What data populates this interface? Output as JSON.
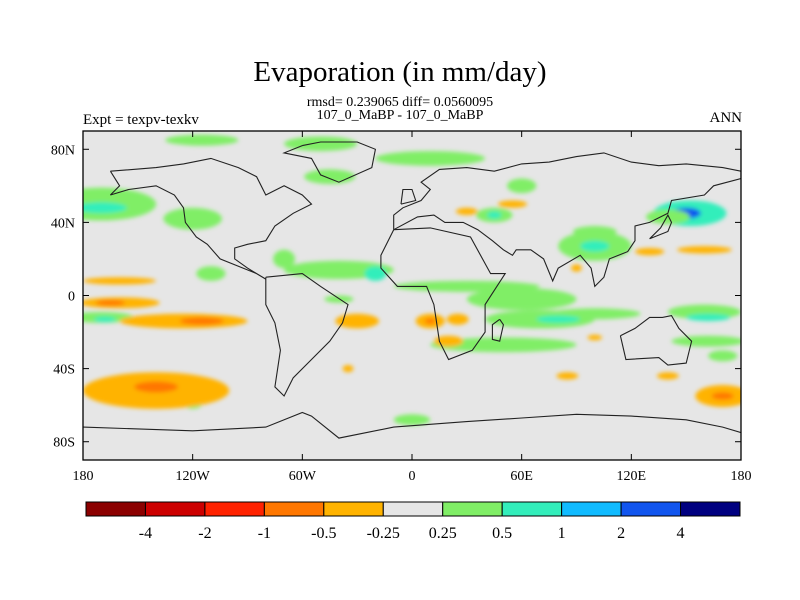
{
  "figure": {
    "title": "Evaporation (in mm/day)",
    "stats": "rmsd= 0.239065 diff= 0.0560095",
    "subtitle": "107_0_MaBP - 107_0_MaBP",
    "left_label": "Expt = texpv-texkv",
    "right_label": "ANN"
  },
  "chart_data": {
    "type": "heatmap",
    "title": "Evaporation (in mm/day)",
    "subtitle": "107_0_MaBP - 107_0_MaBP",
    "xlim": [
      -180,
      180
    ],
    "ylim": [
      -90,
      90
    ],
    "x_ticks": [
      {
        "value": -180,
        "label": "180"
      },
      {
        "value": -120,
        "label": "120W"
      },
      {
        "value": -60,
        "label": "60W"
      },
      {
        "value": 0,
        "label": "0"
      },
      {
        "value": 60,
        "label": "60E"
      },
      {
        "value": 120,
        "label": "120E"
      },
      {
        "value": 180,
        "label": "180"
      }
    ],
    "y_ticks": [
      {
        "value": 80,
        "label": "80N"
      },
      {
        "value": 40,
        "label": "40N"
      },
      {
        "value": 0,
        "label": "0"
      },
      {
        "value": -40,
        "label": "40S"
      },
      {
        "value": -80,
        "label": "80S"
      }
    ],
    "background_color": "#e6e6e6",
    "colorbar": {
      "colors": [
        "#8b0000",
        "#cc0000",
        "#ff2200",
        "#ff7700",
        "#ffb300",
        "#e6e6e6",
        "#80ee66",
        "#33eebb",
        "#11bbff",
        "#1155ee",
        "#000080"
      ],
      "labels": [
        "-4",
        "-2",
        "-1",
        "-0.5",
        "-0.25",
        "0.25",
        "0.5",
        "1",
        "2",
        "4"
      ]
    },
    "anomalies": [
      {
        "lon": -170,
        "lat": 50,
        "dlon": 30,
        "dlat": 9,
        "color": "#80ee66"
      },
      {
        "lon": -170,
        "lat": 48,
        "dlon": 14,
        "dlat": 3,
        "color": "#33eebb"
      },
      {
        "lon": -120,
        "lat": 42,
        "dlon": 16,
        "dlat": 6,
        "color": "#80ee66"
      },
      {
        "lon": -115,
        "lat": 85,
        "dlon": 20,
        "dlat": 3,
        "color": "#80ee66"
      },
      {
        "lon": -50,
        "lat": 83,
        "dlon": 20,
        "dlat": 4,
        "color": "#80ee66"
      },
      {
        "lon": -45,
        "lat": 65,
        "dlon": 14,
        "dlat": 4,
        "color": "#80ee66"
      },
      {
        "lon": -70,
        "lat": 20,
        "dlon": 6,
        "dlat": 5,
        "color": "#80ee66"
      },
      {
        "lon": -40,
        "lat": 14,
        "dlon": 30,
        "dlat": 5,
        "color": "#80ee66"
      },
      {
        "lon": -20,
        "lat": 12,
        "dlon": 6,
        "dlat": 4,
        "color": "#33eebb"
      },
      {
        "lon": 30,
        "lat": 5,
        "dlon": 40,
        "dlat": 3,
        "color": "#80ee66"
      },
      {
        "lon": -40,
        "lat": -2,
        "dlon": 8,
        "dlat": 2,
        "color": "#80ee66"
      },
      {
        "lon": 60,
        "lat": -2,
        "dlon": 30,
        "dlat": 6,
        "color": "#80ee66"
      },
      {
        "lon": 100,
        "lat": -10,
        "dlon": 25,
        "dlat": 3,
        "color": "#80ee66"
      },
      {
        "lon": 70,
        "lat": -13,
        "dlon": 30,
        "dlat": 5,
        "color": "#80ee66"
      },
      {
        "lon": 80,
        "lat": -13,
        "dlon": 12,
        "dlat": 2,
        "color": "#33eebb"
      },
      {
        "lon": 160,
        "lat": -9,
        "dlon": 20,
        "dlat": 4,
        "color": "#80ee66"
      },
      {
        "lon": 162,
        "lat": -12,
        "dlon": 12,
        "dlat": 2,
        "color": "#33eebb"
      },
      {
        "lon": 162,
        "lat": -25,
        "dlon": 20,
        "dlat": 3,
        "color": "#80ee66"
      },
      {
        "lon": 50,
        "lat": -27,
        "dlon": 40,
        "dlat": 4,
        "color": "#80ee66"
      },
      {
        "lon": -170,
        "lat": -12,
        "dlon": 18,
        "dlat": 3,
        "color": "#80ee66"
      },
      {
        "lon": -168,
        "lat": -13,
        "dlon": 6,
        "dlat": 1.5,
        "color": "#33eebb"
      },
      {
        "lon": 100,
        "lat": 27,
        "dlon": 20,
        "dlat": 8,
        "color": "#80ee66"
      },
      {
        "lon": 100,
        "lat": 27,
        "dlon": 8,
        "dlat": 3,
        "color": "#33eebb"
      },
      {
        "lon": 152,
        "lat": 45,
        "dlon": 20,
        "dlat": 7,
        "color": "#33eebb"
      },
      {
        "lon": 150,
        "lat": 45,
        "dlon": 8,
        "dlat": 3,
        "color": "#1155ee"
      },
      {
        "lon": 140,
        "lat": 43,
        "dlon": 12,
        "dlat": 4,
        "color": "#80ee66"
      },
      {
        "lon": 45,
        "lat": 44,
        "dlon": 10,
        "dlat": 4,
        "color": "#80ee66"
      },
      {
        "lon": 45,
        "lat": 44,
        "dlon": 4,
        "dlat": 2,
        "color": "#33eebb"
      },
      {
        "lon": 10,
        "lat": 75,
        "dlon": 30,
        "dlat": 4,
        "color": "#80ee66"
      },
      {
        "lon": 60,
        "lat": 60,
        "dlon": 8,
        "dlat": 4,
        "color": "#80ee66"
      },
      {
        "lon": -110,
        "lat": 12,
        "dlon": 8,
        "dlat": 4,
        "color": "#80ee66"
      },
      {
        "lon": 0,
        "lat": -68,
        "dlon": 10,
        "dlat": 3,
        "color": "#80ee66"
      },
      {
        "lon": -120,
        "lat": -58,
        "dlon": 6,
        "dlat": 4,
        "color": "#80ee66"
      },
      {
        "lon": 170,
        "lat": -33,
        "dlon": 8,
        "dlat": 3,
        "color": "#80ee66"
      },
      {
        "lon": 100,
        "lat": 35,
        "dlon": 12,
        "dlat": 3,
        "color": "#80ee66"
      },
      {
        "lon": -160,
        "lat": 8,
        "dlon": 20,
        "dlat": 2,
        "color": "#ffb300"
      },
      {
        "lon": -160,
        "lat": -4,
        "dlon": 22,
        "dlat": 3,
        "color": "#ffb300"
      },
      {
        "lon": -165,
        "lat": -4,
        "dlon": 8,
        "dlat": 1.5,
        "color": "#ff7700"
      },
      {
        "lon": -125,
        "lat": -14,
        "dlon": 35,
        "dlat": 4,
        "color": "#ffb300"
      },
      {
        "lon": -115,
        "lat": -14,
        "dlon": 12,
        "dlat": 2,
        "color": "#ff7700"
      },
      {
        "lon": -140,
        "lat": -52,
        "dlon": 40,
        "dlat": 10,
        "color": "#ffb300"
      },
      {
        "lon": -140,
        "lat": -50,
        "dlon": 12,
        "dlat": 3,
        "color": "#ff7700"
      },
      {
        "lon": 170,
        "lat": -55,
        "dlon": 15,
        "dlat": 6,
        "color": "#ffb300"
      },
      {
        "lon": 170,
        "lat": -55,
        "dlon": 6,
        "dlat": 2,
        "color": "#ff7700"
      },
      {
        "lon": -30,
        "lat": -14,
        "dlon": 12,
        "dlat": 4,
        "color": "#ffb300"
      },
      {
        "lon": 10,
        "lat": -14,
        "dlon": 8,
        "dlat": 4,
        "color": "#ffb300"
      },
      {
        "lon": 10,
        "lat": -14,
        "dlon": 3,
        "dlat": 1.5,
        "color": "#ff7700"
      },
      {
        "lon": 25,
        "lat": -13,
        "dlon": 6,
        "dlat": 3,
        "color": "#ffb300"
      },
      {
        "lon": 20,
        "lat": -25,
        "dlon": 8,
        "dlat": 3,
        "color": "#ffb300"
      },
      {
        "lon": -35,
        "lat": -40,
        "dlon": 3,
        "dlat": 2,
        "color": "#ffb300"
      },
      {
        "lon": 85,
        "lat": -44,
        "dlon": 6,
        "dlat": 2,
        "color": "#ffb300"
      },
      {
        "lon": 140,
        "lat": -44,
        "dlon": 6,
        "dlat": 2,
        "color": "#ffb300"
      },
      {
        "lon": 130,
        "lat": 24,
        "dlon": 8,
        "dlat": 2,
        "color": "#ffb300"
      },
      {
        "lon": 160,
        "lat": 25,
        "dlon": 15,
        "dlat": 2,
        "color": "#ffb300"
      },
      {
        "lon": 55,
        "lat": 50,
        "dlon": 8,
        "dlat": 2,
        "color": "#ffb300"
      },
      {
        "lon": 30,
        "lat": 46,
        "dlon": 6,
        "dlat": 2,
        "color": "#ffb300"
      },
      {
        "lon": 90,
        "lat": 15,
        "dlon": 3,
        "dlat": 2,
        "color": "#ffb300"
      },
      {
        "lon": 100,
        "lat": -23,
        "dlon": 4,
        "dlat": 1.5,
        "color": "#ffb300"
      }
    ],
    "coastlines": [
      [
        [
          -165,
          68
        ],
        [
          -140,
          70
        ],
        [
          -125,
          72
        ],
        [
          -110,
          75
        ],
        [
          -95,
          70
        ],
        [
          -85,
          65
        ],
        [
          -80,
          55
        ],
        [
          -70,
          60
        ],
        [
          -60,
          55
        ],
        [
          -55,
          50
        ],
        [
          -65,
          45
        ],
        [
          -75,
          38
        ],
        [
          -80,
          30
        ],
        [
          -90,
          28
        ],
        [
          -97,
          26
        ],
        [
          -97,
          20
        ],
        [
          -90,
          15
        ],
        [
          -80,
          9
        ],
        [
          -85,
          12
        ],
        [
          -95,
          16
        ],
        [
          -105,
          20
        ],
        [
          -112,
          28
        ],
        [
          -118,
          32
        ],
        [
          -124,
          40
        ],
        [
          -125,
          48
        ],
        [
          -130,
          55
        ],
        [
          -140,
          60
        ],
        [
          -155,
          58
        ],
        [
          -165,
          55
        ],
        [
          -160,
          60
        ],
        [
          -165,
          68
        ]
      ],
      [
        [
          -60,
          82
        ],
        [
          -50,
          84
        ],
        [
          -30,
          84
        ],
        [
          -20,
          80
        ],
        [
          -22,
          70
        ],
        [
          -40,
          62
        ],
        [
          -50,
          66
        ],
        [
          -55,
          75
        ],
        [
          -70,
          78
        ],
        [
          -60,
          82
        ]
      ],
      [
        [
          -80,
          10
        ],
        [
          -60,
          12
        ],
        [
          -50,
          5
        ],
        [
          -35,
          -5
        ],
        [
          -38,
          -15
        ],
        [
          -45,
          -25
        ],
        [
          -55,
          -35
        ],
        [
          -65,
          -45
        ],
        [
          -70,
          -55
        ],
        [
          -75,
          -50
        ],
        [
          -72,
          -30
        ],
        [
          -75,
          -15
        ],
        [
          -80,
          -5
        ],
        [
          -80,
          10
        ]
      ],
      [
        [
          -10,
          36
        ],
        [
          10,
          37
        ],
        [
          32,
          32
        ],
        [
          43,
          12
        ],
        [
          51,
          12
        ],
        [
          40,
          -5
        ],
        [
          40,
          -20
        ],
        [
          33,
          -30
        ],
        [
          20,
          -35
        ],
        [
          15,
          -25
        ],
        [
          12,
          -5
        ],
        [
          8,
          5
        ],
        [
          -8,
          5
        ],
        [
          -17,
          15
        ],
        [
          -17,
          22
        ],
        [
          -10,
          36
        ]
      ],
      [
        [
          -10,
          36
        ],
        [
          -10,
          44
        ],
        [
          -5,
          48
        ],
        [
          5,
          52
        ],
        [
          10,
          58
        ],
        [
          5,
          62
        ],
        [
          15,
          69
        ],
        [
          30,
          70
        ],
        [
          45,
          68
        ],
        [
          60,
          72
        ],
        [
          75,
          73
        ],
        [
          90,
          76
        ],
        [
          105,
          78
        ],
        [
          120,
          73
        ],
        [
          135,
          71
        ],
        [
          150,
          72
        ],
        [
          170,
          70
        ],
        [
          180,
          68
        ],
        [
          180,
          64
        ],
        [
          165,
          60
        ],
        [
          160,
          55
        ],
        [
          142,
          52
        ],
        [
          140,
          45
        ],
        [
          130,
          40
        ],
        [
          122,
          38
        ],
        [
          122,
          30
        ],
        [
          118,
          24
        ],
        [
          108,
          20
        ],
        [
          105,
          10
        ],
        [
          100,
          5
        ],
        [
          98,
          15
        ],
        [
          92,
          22
        ],
        [
          80,
          15
        ],
        [
          77,
          8
        ],
        [
          72,
          20
        ],
        [
          65,
          25
        ],
        [
          57,
          25
        ],
        [
          55,
          22
        ],
        [
          50,
          25
        ],
        [
          44,
          30
        ],
        [
          36,
          36
        ],
        [
          28,
          40
        ],
        [
          18,
          40
        ],
        [
          12,
          44
        ],
        [
          3,
          43
        ],
        [
          -10,
          36
        ]
      ],
      [
        [
          114,
          -22
        ],
        [
          122,
          -18
        ],
        [
          130,
          -12
        ],
        [
          137,
          -12
        ],
        [
          142,
          -11
        ],
        [
          146,
          -18
        ],
        [
          153,
          -25
        ],
        [
          150,
          -37
        ],
        [
          140,
          -38
        ],
        [
          135,
          -34
        ],
        [
          117,
          -35
        ],
        [
          114,
          -22
        ]
      ],
      [
        [
          -180,
          -72
        ],
        [
          -120,
          -74
        ],
        [
          -80,
          -72
        ],
        [
          -60,
          -64
        ],
        [
          -55,
          -66
        ],
        [
          -40,
          -78
        ],
        [
          -10,
          -72
        ],
        [
          30,
          -69
        ],
        [
          60,
          -67
        ],
        [
          90,
          -65
        ],
        [
          120,
          -66
        ],
        [
          150,
          -68
        ],
        [
          170,
          -72
        ],
        [
          180,
          -75
        ]
      ],
      [
        [
          48,
          -13
        ],
        [
          50,
          -16
        ],
        [
          48,
          -25
        ],
        [
          44,
          -24
        ],
        [
          44,
          -16
        ],
        [
          48,
          -13
        ]
      ],
      [
        [
          -6,
          50
        ],
        [
          2,
          52
        ],
        [
          0,
          58
        ],
        [
          -5,
          58
        ],
        [
          -6,
          50
        ]
      ],
      [
        [
          130,
          31
        ],
        [
          140,
          35
        ],
        [
          142,
          40
        ],
        [
          140,
          44
        ],
        [
          136,
          37
        ],
        [
          130,
          31
        ]
      ]
    ]
  }
}
